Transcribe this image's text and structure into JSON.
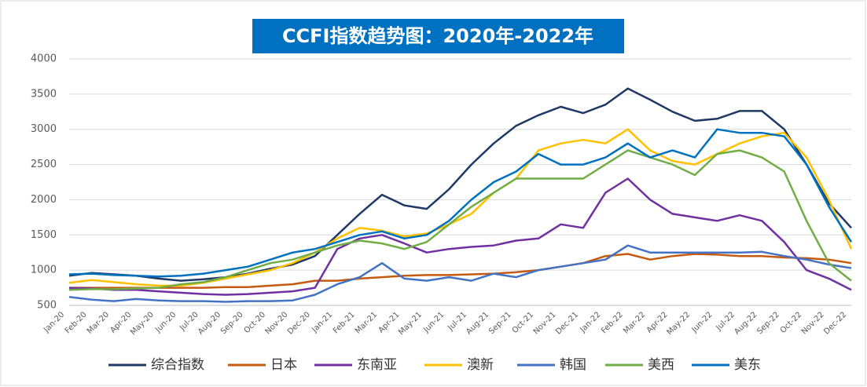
{
  "chart_data": {
    "type": "line",
    "title": "CCFI指数趋势图：2020年-2022年",
    "categories": [
      "Jan-20",
      "Feb-20",
      "Mar-20",
      "Apr-20",
      "May-20",
      "Jun-20",
      "Jul-20",
      "Aug-20",
      "Sep-20",
      "Oct-20",
      "Nov-20",
      "Dec-20",
      "Jan-21",
      "Feb-21",
      "Mar-21",
      "Apr-21",
      "May-21",
      "Jun-21",
      "Jul-21",
      "Aug-21",
      "Sep-21",
      "Oct-21",
      "Nov-21",
      "Dec-21",
      "Jan-22",
      "Feb-22",
      "Mar-22",
      "Apr-22",
      "May-22",
      "Jun-22",
      "Jul-22",
      "Aug-22",
      "Sep-22",
      "Oct-22",
      "Nov-22",
      "Dec-22"
    ],
    "series": [
      {
        "name": "综合指数",
        "color": "#1f3864",
        "values": [
          920,
          960,
          940,
          920,
          880,
          850,
          870,
          900,
          950,
          1020,
          1080,
          1200,
          1500,
          1800,
          2070,
          1920,
          1870,
          2150,
          2500,
          2800,
          3050,
          3200,
          3320,
          3230,
          3350,
          3580,
          3420,
          3250,
          3120,
          3150,
          3260,
          3260,
          3000,
          2500,
          1950,
          1600
        ]
      },
      {
        "name": "日本",
        "color": "#c55a11",
        "values": [
          750,
          750,
          750,
          750,
          750,
          750,
          750,
          760,
          760,
          780,
          800,
          850,
          850,
          880,
          900,
          920,
          930,
          930,
          940,
          950,
          970,
          1000,
          1050,
          1100,
          1200,
          1230,
          1150,
          1200,
          1230,
          1220,
          1200,
          1200,
          1180,
          1170,
          1150,
          1100
        ]
      },
      {
        "name": "东南亚",
        "color": "#7030a0",
        "values": [
          750,
          740,
          720,
          720,
          700,
          680,
          660,
          650,
          660,
          680,
          700,
          750,
          1300,
          1450,
          1500,
          1380,
          1250,
          1300,
          1330,
          1350,
          1420,
          1450,
          1650,
          1600,
          2100,
          2300,
          2000,
          1800,
          1750,
          1700,
          1780,
          1700,
          1400,
          1000,
          880,
          720
        ]
      },
      {
        "name": "澳新",
        "color": "#ffc000",
        "values": [
          820,
          860,
          830,
          800,
          780,
          780,
          820,
          880,
          940,
          1000,
          1100,
          1250,
          1450,
          1600,
          1560,
          1480,
          1520,
          1650,
          1800,
          2100,
          2300,
          2700,
          2800,
          2850,
          2800,
          3000,
          2700,
          2550,
          2500,
          2650,
          2800,
          2900,
          2950,
          2600,
          2000,
          1300
        ]
      },
      {
        "name": "韩国",
        "color": "#4472c4",
        "values": [
          620,
          580,
          560,
          590,
          570,
          560,
          560,
          550,
          560,
          560,
          570,
          650,
          800,
          900,
          1100,
          880,
          850,
          900,
          850,
          950,
          900,
          1000,
          1050,
          1100,
          1150,
          1350,
          1250,
          1250,
          1250,
          1250,
          1250,
          1260,
          1200,
          1150,
          1080,
          1030
        ]
      },
      {
        "name": "美西",
        "color": "#70ad47",
        "values": [
          720,
          730,
          730,
          740,
          750,
          800,
          830,
          900,
          1000,
          1100,
          1150,
          1250,
          1350,
          1420,
          1380,
          1300,
          1400,
          1650,
          1900,
          2100,
          2300,
          2300,
          2300,
          2300,
          2500,
          2700,
          2600,
          2500,
          2350,
          2650,
          2700,
          2600,
          2400,
          1700,
          1100,
          850
        ]
      },
      {
        "name": "美东",
        "color": "#0070c0",
        "values": [
          940,
          950,
          930,
          920,
          910,
          920,
          950,
          1000,
          1050,
          1150,
          1250,
          1300,
          1400,
          1500,
          1550,
          1450,
          1500,
          1700,
          2000,
          2250,
          2400,
          2650,
          2500,
          2500,
          2600,
          2800,
          2600,
          2700,
          2600,
          3000,
          2950,
          2950,
          2900,
          2500,
          1900,
          1400
        ]
      }
    ],
    "ylim": [
      500,
      4000
    ],
    "yticks": [
      500,
      1000,
      1500,
      2000,
      2500,
      3000,
      3500,
      4000
    ],
    "grid": true
  }
}
